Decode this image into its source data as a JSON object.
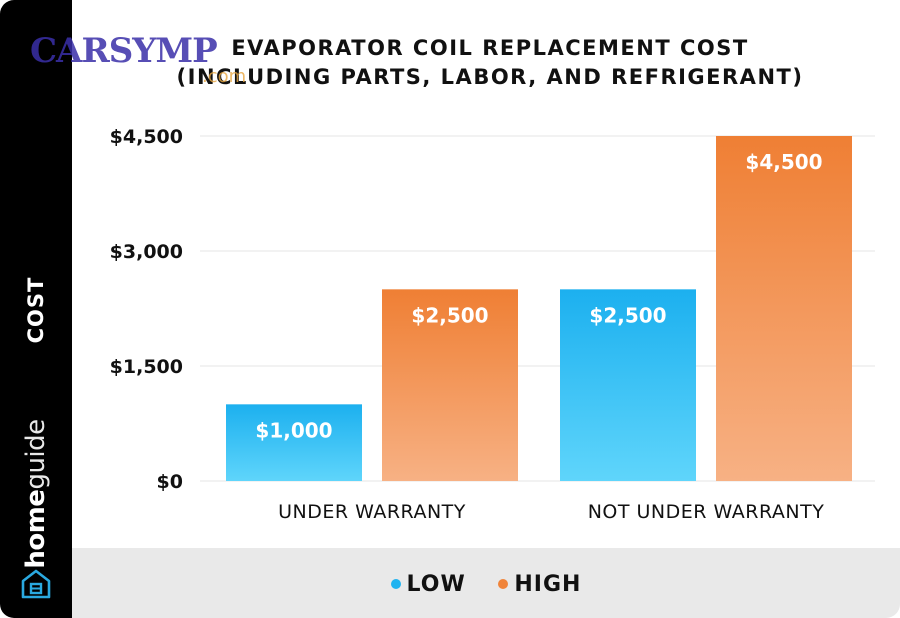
{
  "title_line1": "EVAPORATOR COIL REPLACEMENT COST",
  "title_line2": "(INCLUDING PARTS, LABOR, AND REFRIGERANT)",
  "sidebar": {
    "axis_label": "COST",
    "brand_bold": "home",
    "brand_light": "guide",
    "icon": "home-icon"
  },
  "watermark": {
    "text": "CARSYMP",
    "subtext": ".com"
  },
  "legend": {
    "items": [
      {
        "label": "LOW",
        "color": "#1fb3f0"
      },
      {
        "label": "HIGH",
        "color": "#f0843a"
      }
    ]
  },
  "colors": {
    "low_top": "#1cb0ef",
    "low_bottom": "#5fd5fb",
    "high_top": "#ef7f34",
    "high_bottom": "#f7b184",
    "grid": "#e6e6e6"
  },
  "chart_data": {
    "type": "bar",
    "title": "EVAPORATOR COIL REPLACEMENT COST (INCLUDING PARTS, LABOR, AND REFRIGERANT)",
    "ylabel": "COST",
    "xlabel": "",
    "categories": [
      "UNDER WARRANTY",
      "NOT UNDER WARRANTY"
    ],
    "series": [
      {
        "name": "LOW",
        "values": [
          1000,
          2500
        ],
        "labels": [
          "$1,000",
          "$2,500"
        ]
      },
      {
        "name": "HIGH",
        "values": [
          2500,
          4500
        ],
        "labels": [
          "$2,500",
          "$4,500"
        ]
      }
    ],
    "ylim": [
      0,
      4500
    ],
    "yticks": [
      0,
      1500,
      3000,
      4500
    ],
    "ytick_labels": [
      "$0",
      "$1,500",
      "$3,000",
      "$4,500"
    ],
    "grid": true,
    "legend_position": "bottom"
  }
}
